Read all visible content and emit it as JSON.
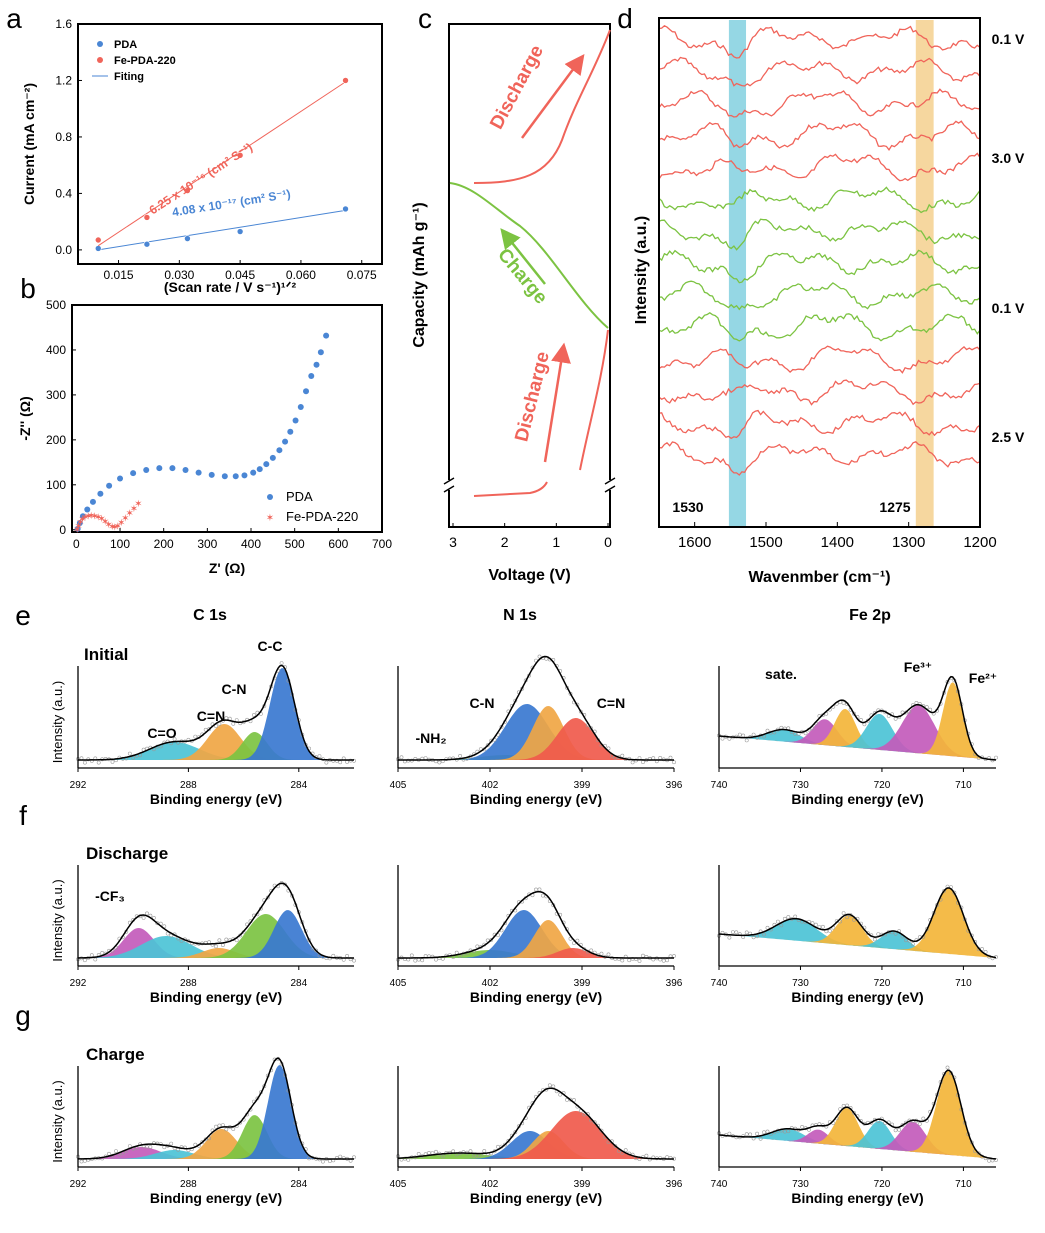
{
  "colors": {
    "pda": "#4a86d4",
    "fe": "#f0645a",
    "green": "#7cc342",
    "blue_peak": "#3a78d0",
    "cyan": "#4cc3d6",
    "orange": "#f0a644",
    "fe_orange": "#f3b53a",
    "magenta": "#c35bbb",
    "red_peak": "#f05a4c",
    "band_cyan": "#8fd5e3",
    "band_orange": "#f6d59a"
  },
  "chart_data": [
    {
      "panel": "a",
      "type": "scatter",
      "xlabel": "(Scan rate / V s⁻¹)¹ᐟ²",
      "ylabel": "Current (mA cm⁻²)",
      "xlim": [
        0.005,
        0.08
      ],
      "ylim": [
        -0.1,
        1.6
      ],
      "xticks": [
        "0.015",
        "0.030",
        "0.045",
        "0.060",
        "0.075"
      ],
      "xtick_values": [
        0.015,
        0.03,
        0.045,
        0.06,
        0.075
      ],
      "yticks": [
        "0.0",
        "0.4",
        "0.8",
        "1.2",
        "1.6"
      ],
      "ytick_values": [
        0,
        0.4,
        0.8,
        1.2,
        1.6
      ],
      "legend": [
        "PDA",
        "Fe-PDA-220",
        "Fiting"
      ],
      "legend_position": "top-left",
      "series": [
        {
          "name": "PDA",
          "x": [
            0.01,
            0.022,
            0.032,
            0.045,
            0.071
          ],
          "y": [
            0.01,
            0.04,
            0.08,
            0.13,
            0.29
          ],
          "fit": [
            [
              0.01,
              0.0
            ],
            [
              0.071,
              0.28
            ]
          ]
        },
        {
          "name": "Fe-PDA-220",
          "x": [
            0.01,
            0.022,
            0.032,
            0.045,
            0.071
          ],
          "y": [
            0.07,
            0.23,
            0.42,
            0.67,
            1.2
          ],
          "fit": [
            [
              0.01,
              0.03
            ],
            [
              0.071,
              1.19
            ]
          ]
        }
      ],
      "annotations": {
        "fe": "6.25 x 10⁻¹⁶ (cm² S⁻¹)",
        "pda": "4.08 x 10⁻¹⁷ (cm² S⁻¹)"
      }
    },
    {
      "panel": "b",
      "type": "scatter",
      "xlabel": "Z' (Ω)",
      "ylabel": "-Z'' (Ω)",
      "xlim": [
        -10,
        700
      ],
      "ylim": [
        -5,
        500
      ],
      "xticks": [
        "0",
        "100",
        "200",
        "300",
        "400",
        "500",
        "600",
        "700"
      ],
      "xtick_values": [
        0,
        100,
        200,
        300,
        400,
        500,
        600,
        700
      ],
      "yticks": [
        "0",
        "100",
        "200",
        "300",
        "400",
        "500"
      ],
      "ytick_values": [
        0,
        100,
        200,
        300,
        400,
        500
      ],
      "legend": [
        "PDA",
        "Fe-PDA-220"
      ],
      "legend_position": "bottom-right",
      "series": [
        {
          "name": "PDA",
          "x": [
            3,
            8,
            15,
            25,
            38,
            55,
            75,
            100,
            130,
            160,
            190,
            220,
            250,
            280,
            310,
            340,
            365,
            385,
            405,
            420,
            435,
            450,
            465,
            478,
            490,
            502,
            514,
            526,
            538,
            550,
            560,
            572
          ],
          "y": [
            2,
            15,
            30,
            45,
            62,
            80,
            98,
            114,
            126,
            133,
            137,
            137,
            133,
            127,
            122,
            119,
            119,
            121,
            127,
            135,
            146,
            160,
            177,
            196,
            218,
            243,
            273,
            308,
            342,
            367,
            395,
            432
          ]
        },
        {
          "name": "Fe-PDA-220",
          "x": [
            2,
            5,
            9,
            14,
            20,
            27,
            34,
            42,
            50,
            58,
            66,
            74,
            82,
            88,
            95,
            103,
            112,
            122,
            132,
            142
          ],
          "y": [
            2,
            10,
            18,
            25,
            30,
            32,
            33,
            32,
            30,
            26,
            20,
            13,
            8,
            7,
            10,
            17,
            27,
            38,
            48,
            60
          ]
        }
      ]
    },
    {
      "panel": "c",
      "type": "line",
      "xlabel": "Voltage (V)",
      "ylabel": "Capacity (mAh g⁻¹)",
      "xticks": [
        "3",
        "2",
        "1",
        "0"
      ],
      "xtick_values": [
        3,
        2,
        1,
        0
      ],
      "xlim": [
        3,
        0
      ],
      "labels": {
        "discharge_top": "Discharge",
        "charge": "Charge",
        "discharge_bottom": "Discharge"
      }
    },
    {
      "panel": "d",
      "type": "line",
      "xlabel": "Wavenmber (cm⁻¹)",
      "ylabel": "Intensity (a.u.)",
      "xlim": [
        1650,
        1200
      ],
      "xticks": [
        "1600",
        "1500",
        "1400",
        "1300",
        "1200"
      ],
      "xtick_values": [
        1600,
        1500,
        1400,
        1300,
        1200
      ],
      "bands": [
        {
          "label": "1530",
          "from": 1552,
          "to": 1528
        },
        {
          "label": "1275",
          "from": 1290,
          "to": 1265
        }
      ],
      "voltage_labels": [
        "0.1 V",
        "3.0 V",
        "0.1 V",
        "2.5 V"
      ],
      "spectra_colors": [
        "red",
        "red",
        "red",
        "red",
        "red",
        "green",
        "green",
        "green",
        "green",
        "green",
        "red",
        "red",
        "red",
        "red"
      ]
    },
    {
      "panel": "e-g",
      "type": "area",
      "column_titles": [
        "C 1s",
        "N 1s",
        "Fe 2p"
      ],
      "row_labels": [
        "Initial",
        "Discharge",
        "Charge"
      ],
      "ylabel": "Intensity (a.u.)",
      "xlabel": "Binding energy (eV)",
      "axes": [
        {
          "xlim": [
            292,
            282
          ],
          "xticks": [
            "292",
            "288",
            "284"
          ],
          "xtick_values": [
            292,
            288,
            284
          ]
        },
        {
          "xlim": [
            405,
            396
          ],
          "xticks": [
            "405",
            "402",
            "399",
            "396"
          ],
          "xtick_values": [
            405,
            402,
            399,
            396
          ]
        },
        {
          "xlim": [
            740,
            706
          ],
          "xticks": [
            "740",
            "730",
            "720",
            "710"
          ],
          "xtick_values": [
            740,
            730,
            720,
            710
          ]
        }
      ],
      "peak_labels": {
        "c_initial": [
          "C=O",
          "C=N",
          "C-N",
          "C-C"
        ],
        "c_discharge": [
          "-CF₃"
        ],
        "n_initial": [
          "-NH₂",
          "C-N",
          "C=N"
        ],
        "fe_initial": [
          "sate.",
          "Fe³⁺",
          "Fe²⁺"
        ]
      }
    }
  ],
  "panel_letters": [
    "a",
    "b",
    "c",
    "d",
    "e",
    "f",
    "g"
  ]
}
